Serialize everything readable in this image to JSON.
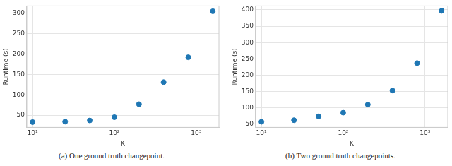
{
  "chart_data": [
    {
      "type": "scatter",
      "caption": "(a) One ground truth changepoint.",
      "x_label": "K",
      "y_label": "Runtime (s)",
      "x": [
        10,
        25,
        50,
        100,
        200,
        400,
        800,
        1600
      ],
      "values": [
        33,
        34,
        37,
        45,
        77,
        131,
        192,
        305
      ],
      "color": "#1f77b4",
      "marker": "circle",
      "log": "x",
      "grid": true,
      "xlim": [
        8.5,
        1900
      ],
      "xticks": [
        {
          "value": 10,
          "label": "10¹"
        },
        {
          "value": 100,
          "label": "10²"
        },
        {
          "value": 1000,
          "label": "10³"
        }
      ],
      "ylim": [
        20,
        318
      ],
      "yticks": [
        50,
        100,
        150,
        200,
        250,
        300
      ]
    },
    {
      "type": "scatter",
      "caption": "(b) Two ground truth changepoints.",
      "x_label": "K",
      "y_label": "Runtime (s)",
      "x": [
        10,
        25,
        50,
        100,
        200,
        400,
        800,
        1600
      ],
      "values": [
        57,
        62,
        74,
        85,
        110,
        153,
        237,
        397
      ],
      "color": "#1f77b4",
      "marker": "circle",
      "log": "x",
      "grid": true,
      "xlim": [
        8.5,
        1900
      ],
      "xticks": [
        {
          "value": 10,
          "label": "10¹"
        },
        {
          "value": 100,
          "label": "10²"
        },
        {
          "value": 1000,
          "label": "10³"
        }
      ],
      "ylim": [
        40,
        412
      ],
      "yticks": [
        50,
        100,
        150,
        200,
        250,
        300,
        350,
        400
      ]
    }
  ]
}
